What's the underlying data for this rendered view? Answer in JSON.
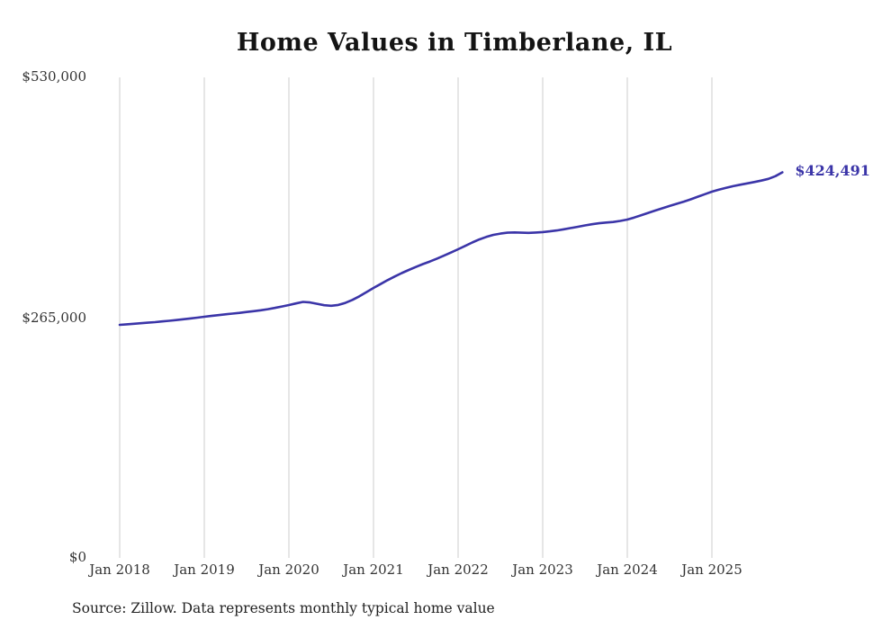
{
  "chart_data": {
    "type": "line",
    "title": "Home Values in Timberlane, IL",
    "series_name": "Monthly typical home value",
    "x_tick_labels": [
      "Jan 2018",
      "Jan 2019",
      "Jan 2020",
      "Jan 2021",
      "Jan 2022",
      "Jan 2023",
      "Jan 2024",
      "Jan 2025"
    ],
    "x_tick_month_indices": [
      0,
      12,
      24,
      36,
      48,
      60,
      72,
      84
    ],
    "start_month": "Jan 2018",
    "end_month": "Nov 2025",
    "values": [
      256600,
      257200,
      257800,
      258400,
      259000,
      259600,
      260300,
      261000,
      261800,
      262700,
      263600,
      264500,
      265500,
      266400,
      267300,
      268200,
      269000,
      269800,
      270700,
      271600,
      272600,
      273800,
      275200,
      276800,
      278400,
      280200,
      281800,
      281200,
      279800,
      278200,
      277600,
      278500,
      280800,
      284000,
      288000,
      292600,
      297200,
      301500,
      305800,
      309800,
      313500,
      317000,
      320300,
      323400,
      326300,
      329500,
      332800,
      336200,
      339800,
      343500,
      347200,
      350600,
      353400,
      355600,
      357000,
      358000,
      358300,
      358000,
      357800,
      358200,
      358700,
      359500,
      360500,
      361800,
      363200,
      364600,
      366000,
      367300,
      368400,
      369200,
      369800,
      371000,
      372500,
      374800,
      377300,
      379900,
      382500,
      385000,
      387400,
      389800,
      392200,
      394800,
      397600,
      400400,
      403200,
      405400,
      407400,
      409200,
      410800,
      412300,
      413800,
      415400,
      417300,
      420200,
      424491
    ],
    "end_value": 424491,
    "end_label": "$424,491",
    "y_tick_labels": [
      "$0",
      "$265,000",
      "$530,000"
    ],
    "y_ticks": [
      0,
      265000,
      530000
    ],
    "ylim": [
      0,
      530000
    ],
    "grid": "vertical-only",
    "legend": "none",
    "line_color": "#3b35a8",
    "grid_color": "#cccccc",
    "source_note": "Source: Zillow. Data represents monthly typical home value"
  }
}
